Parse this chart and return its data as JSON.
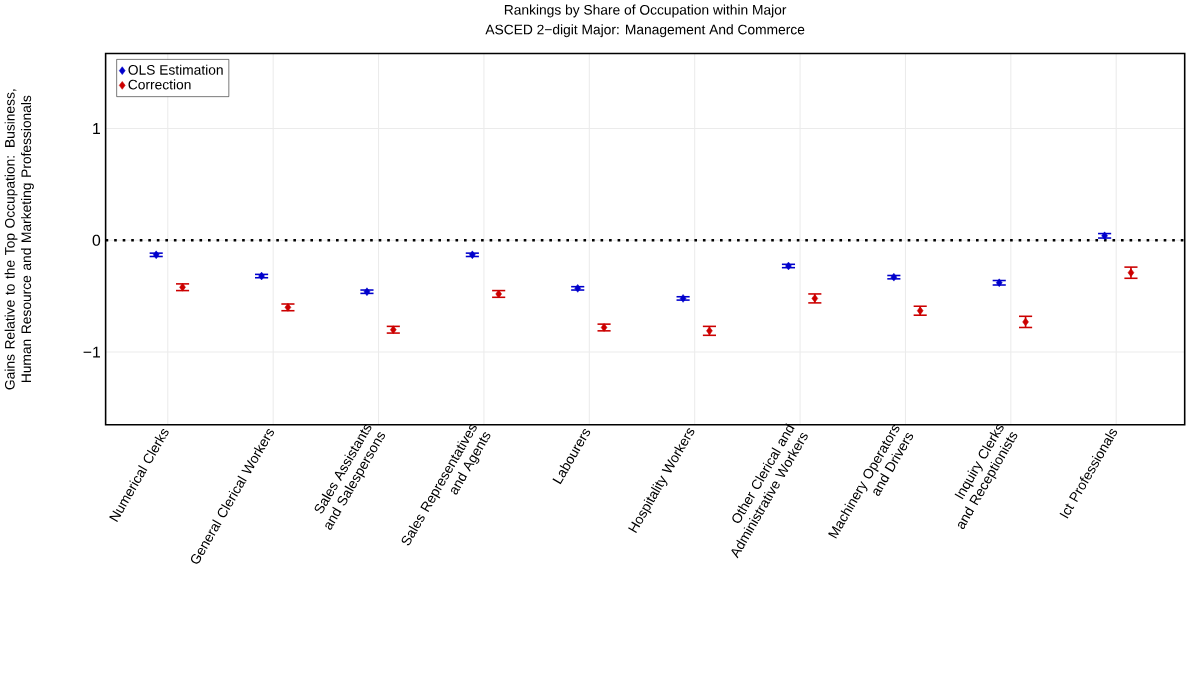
{
  "chart_data": {
    "type": "scatter",
    "title": "Rankings by Share of Occupation within Major",
    "subtitle": "ASCED 2−digit Major: Management And Commerce",
    "ylabel": "Gains Relative to the Top Occupation: Business, Human Resource and Marketing Professionals",
    "categories": [
      "Numerical Clerks",
      "General Clerical Workers",
      "Sales Assistants and Salespersons",
      "Sales Representatives and Agents",
      "Labourers",
      "Hospitality Workers",
      "Other Clerical and Administrative Workers",
      "Machinery Operators and Drivers",
      "Inquiry Clerks and Receptionists",
      "Ict Professionals"
    ],
    "series": [
      {
        "name": "OLS Estimation",
        "color": "#0000cc",
        "values": [
          -0.13,
          -0.32,
          -0.46,
          -0.13,
          -0.43,
          -0.52,
          -0.23,
          -0.33,
          -0.38,
          0.04
        ],
        "errors": [
          0.015,
          0.015,
          0.015,
          0.015,
          0.015,
          0.015,
          0.015,
          0.015,
          0.02,
          0.02
        ]
      },
      {
        "name": "Correction",
        "color": "#cc0000",
        "values": [
          -0.42,
          -0.6,
          -0.8,
          -0.48,
          -0.78,
          -0.81,
          -0.52,
          -0.63,
          -0.73,
          -0.29
        ],
        "errors": [
          0.03,
          0.03,
          0.03,
          0.03,
          0.03,
          0.04,
          0.04,
          0.04,
          0.05,
          0.05
        ]
      }
    ],
    "ylim": [
      -1.65,
      1.67
    ],
    "yticks": [
      {
        "value": -1,
        "label": "−1"
      },
      0,
      1
    ],
    "ref_lines": [
      {
        "axis": "y",
        "value": 0,
        "color": "#000000",
        "line_style": "dotted"
      }
    ],
    "grid": true,
    "legend": "top left",
    "marker": "diamond"
  }
}
